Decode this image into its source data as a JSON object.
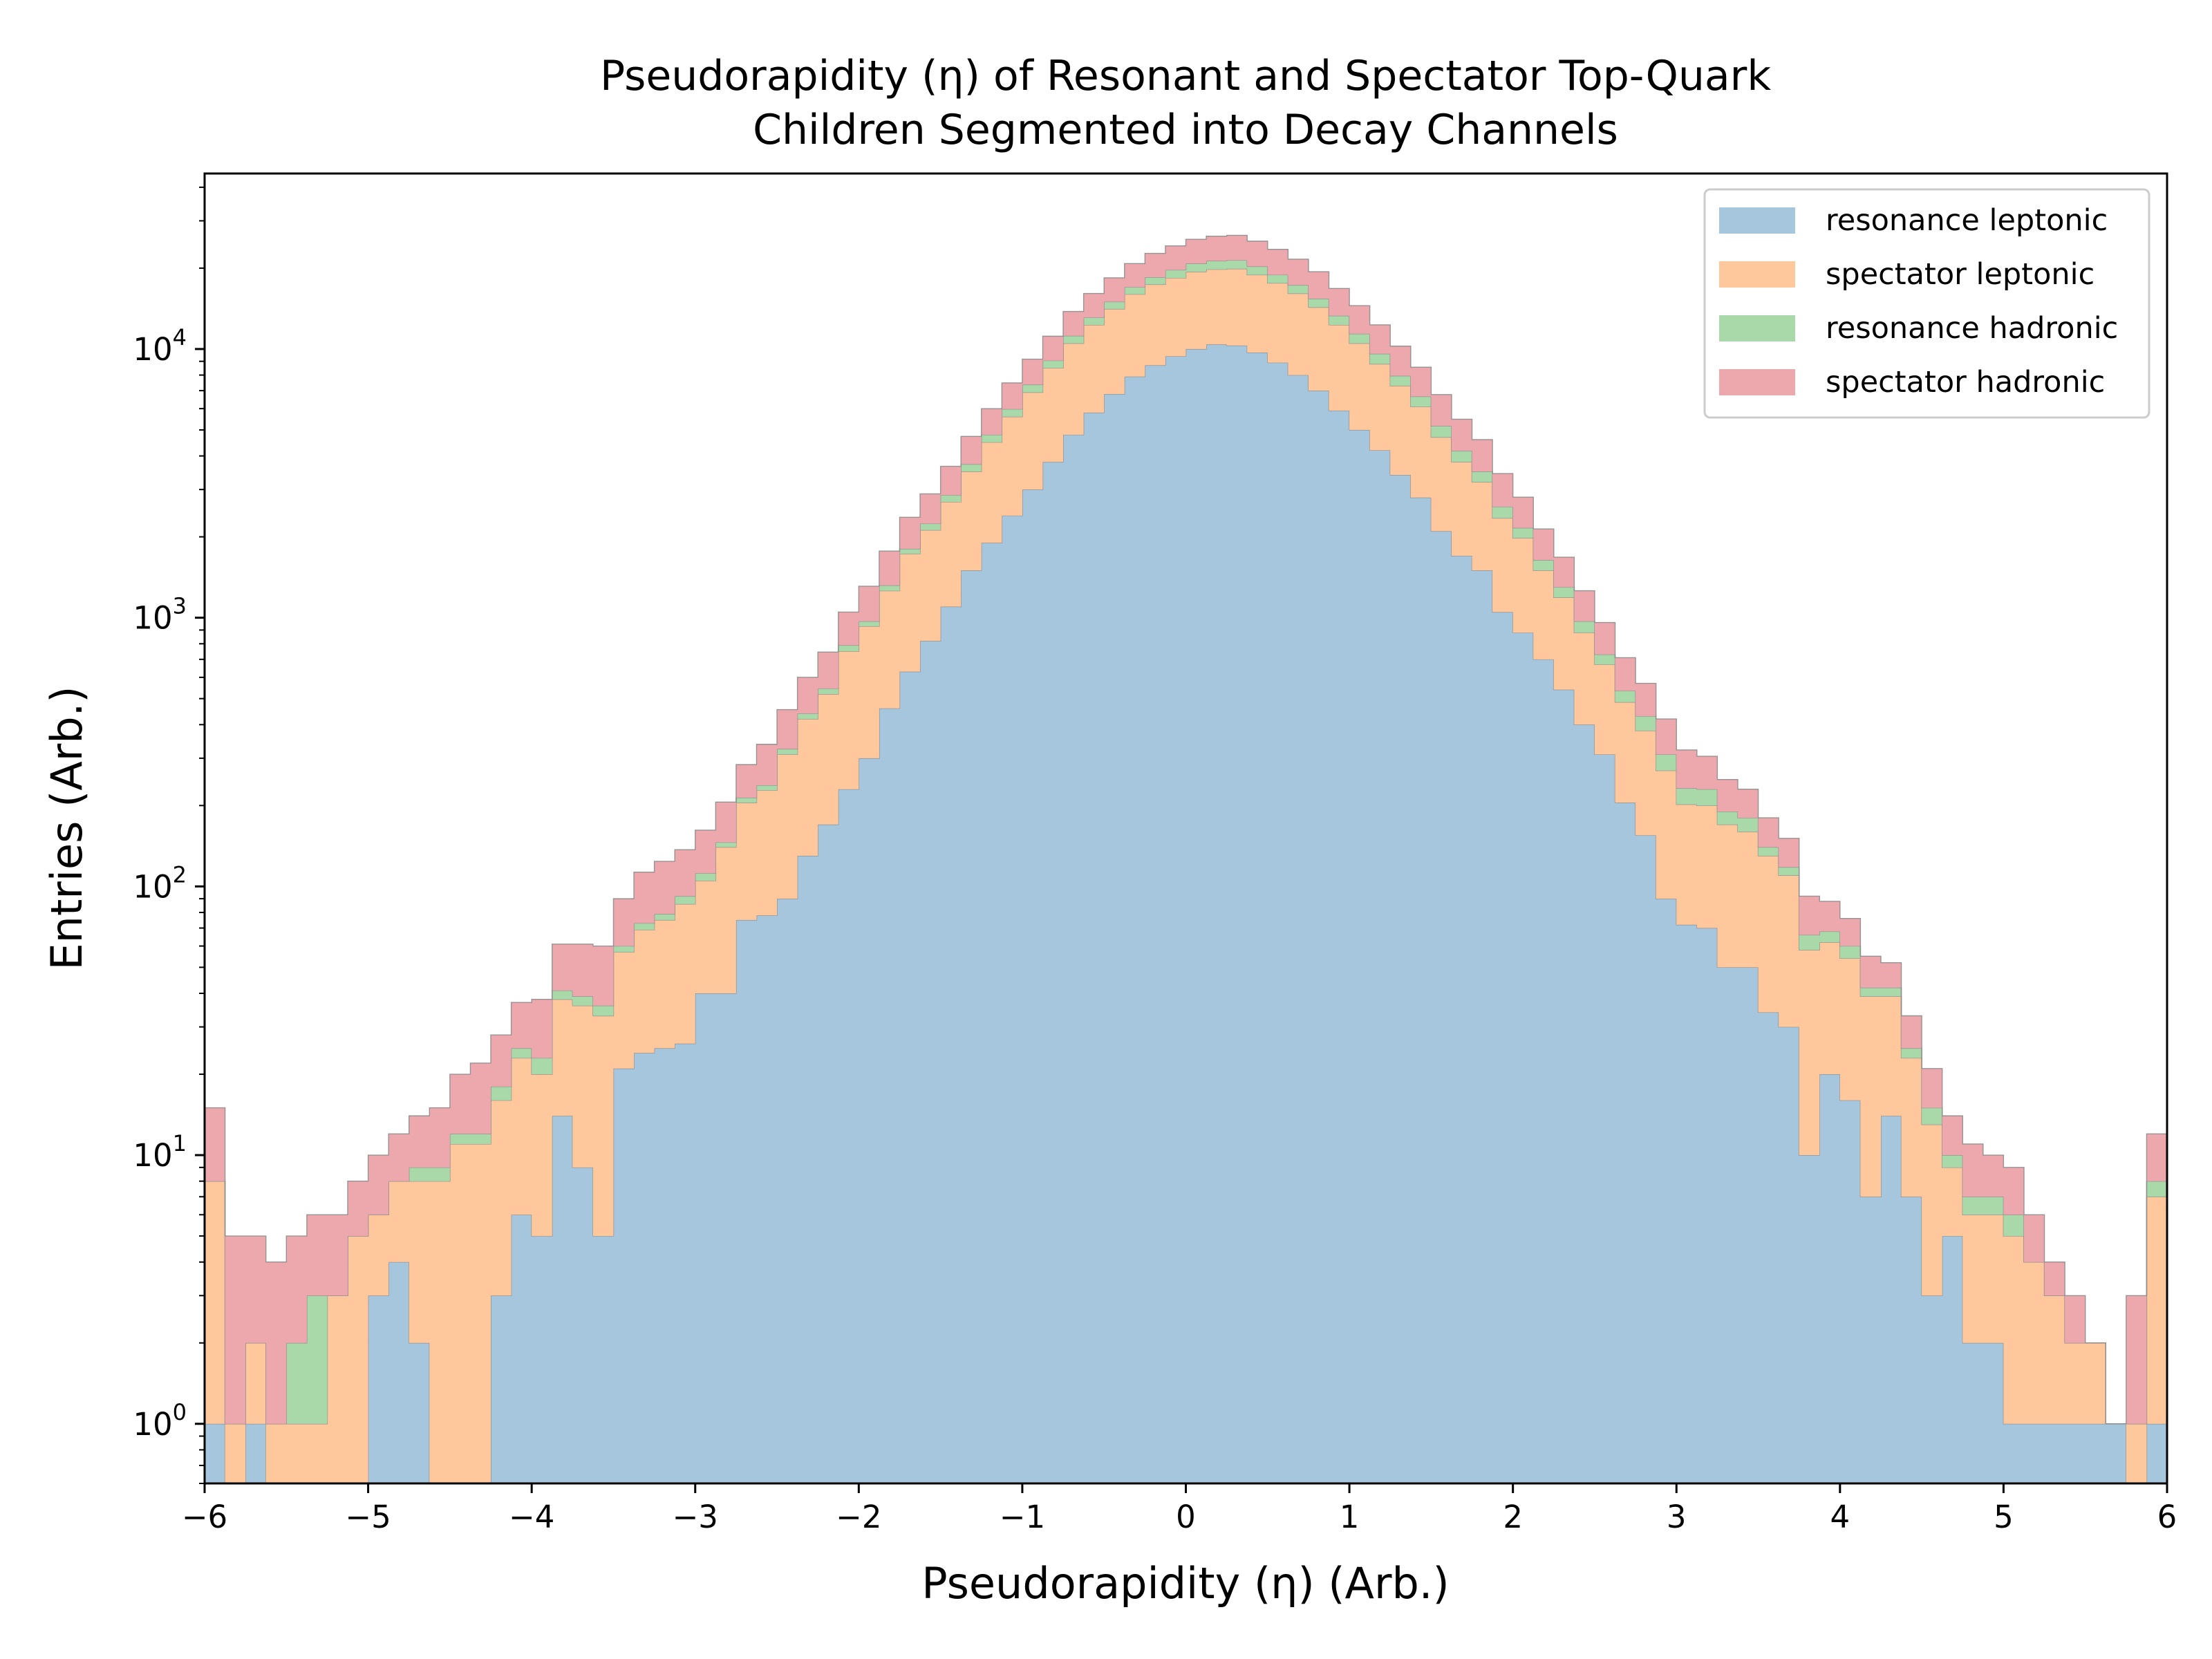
{
  "chart_data": {
    "type": "histogram",
    "stacked": true,
    "title_lines": [
      "Pseudorapidity (η) of Resonant and Spectator Top-Quark",
      "Children Segmented into Decay Channels"
    ],
    "xlabel": "Pseudorapidity (η) (Arb.)",
    "ylabel": "Entries (Arb.)",
    "xlim": [
      -6,
      6
    ],
    "ylim": [
      0.6,
      45000
    ],
    "yscale": "log",
    "x_ticks": [
      -6,
      -5,
      -4,
      -3,
      -2,
      -1,
      0,
      1,
      2,
      3,
      4,
      5,
      6
    ],
    "x_tick_labels": [
      "−6",
      "−5",
      "−4",
      "−3",
      "−2",
      "−1",
      "0",
      "1",
      "2",
      "3",
      "4",
      "5",
      "6"
    ],
    "y_ticks": [
      {
        "base": "10",
        "exp": "0",
        "value": 1
      },
      {
        "base": "10",
        "exp": "1",
        "value": 10
      },
      {
        "base": "10",
        "exp": "2",
        "value": 100
      },
      {
        "base": "10",
        "exp": "3",
        "value": 1000
      },
      {
        "base": "10",
        "exp": "4",
        "value": 10000
      }
    ],
    "bins": 96,
    "legend_position": "upper right",
    "series": [
      {
        "name": "resonance leptonic",
        "color": "#a6c6de",
        "values": [
          1,
          0,
          1,
          0,
          0,
          0,
          0,
          0,
          3,
          4,
          2,
          0,
          0,
          0,
          3,
          6,
          5,
          14,
          9,
          5,
          21,
          24,
          25,
          26,
          40,
          40,
          75,
          78,
          90,
          130,
          170,
          230,
          300,
          460,
          630,
          820,
          1100,
          1500,
          1900,
          2400,
          3000,
          3800,
          4800,
          5800,
          6800,
          7900,
          8700,
          9400,
          10000,
          10400,
          10300,
          9700,
          8900,
          8000,
          7000,
          5900,
          5000,
          4200,
          3400,
          2800,
          2100,
          1700,
          1500,
          1050,
          880,
          700,
          540,
          400,
          310,
          205,
          155,
          90,
          72,
          70,
          50,
          50,
          34,
          30,
          10,
          20,
          16,
          7,
          14,
          7,
          3,
          5,
          2,
          2,
          1,
          1,
          1,
          1,
          1,
          1,
          0,
          1
        ]
      },
      {
        "name": "spectator leptonic",
        "color": "#fec89c",
        "values": [
          7,
          1,
          1,
          1,
          1,
          1,
          3,
          5,
          3,
          4,
          6,
          8,
          11,
          11,
          13,
          17,
          15,
          24,
          27,
          28,
          36,
          45,
          50,
          60,
          65,
          100,
          130,
          150,
          220,
          290,
          350,
          520,
          630,
          800,
          1100,
          1300,
          1600,
          2000,
          2600,
          3200,
          3900,
          4700,
          5700,
          6500,
          7300,
          8100,
          8700,
          9000,
          9400,
          9400,
          9600,
          9200,
          8700,
          8100,
          7300,
          6400,
          5500,
          4600,
          3900,
          3300,
          2600,
          2100,
          1700,
          1300,
          1100,
          800,
          650,
          480,
          360,
          280,
          225,
          180,
          130,
          130,
          120,
          110,
          96,
          80,
          48,
          42,
          38,
          32,
          25,
          16,
          10,
          4,
          4,
          4,
          4,
          3,
          2,
          1,
          1,
          0,
          1,
          6
        ]
      },
      {
        "name": "resonance hadronic",
        "color": "#a9d9a9",
        "values": [
          0,
          0,
          0,
          0,
          1,
          2,
          0,
          0,
          0,
          0,
          1,
          1,
          1,
          1,
          2,
          2,
          3,
          3,
          3,
          3,
          3,
          4,
          4,
          6,
          7,
          6,
          9,
          10,
          15,
          20,
          25,
          40,
          40,
          60,
          75,
          120,
          160,
          230,
          300,
          380,
          470,
          560,
          700,
          800,
          900,
          1000,
          1100,
          1300,
          1400,
          1500,
          1500,
          1400,
          1300,
          1200,
          1100,
          1000,
          900,
          800,
          650,
          560,
          470,
          380,
          300,
          240,
          180,
          140,
          110,
          90,
          60,
          50,
          50,
          40,
          30,
          30,
          20,
          20,
          10,
          8,
          8,
          6,
          6,
          3,
          3,
          2,
          2,
          1,
          1,
          1,
          1,
          0,
          0,
          0,
          0,
          0,
          0,
          1
        ]
      },
      {
        "name": "spectator hadronic",
        "color": "#eda8ae",
        "values": [
          7,
          4,
          3,
          3,
          3,
          3,
          3,
          3,
          4,
          4,
          5,
          6,
          8,
          10,
          10,
          12,
          15,
          20,
          22,
          24,
          30,
          40,
          45,
          45,
          50,
          60,
          70,
          100,
          130,
          160,
          200,
          260,
          340,
          450,
          560,
          650,
          800,
          1000,
          1200,
          1500,
          1800,
          2100,
          2600,
          3000,
          3400,
          3800,
          4200,
          4500,
          4800,
          5000,
          5100,
          4900,
          4600,
          4300,
          4000,
          3500,
          3100,
          2700,
          2300,
          1900,
          1600,
          1300,
          1100,
          850,
          650,
          500,
          380,
          290,
          230,
          175,
          140,
          110,
          90,
          75,
          60,
          50,
          40,
          33,
          26,
          20,
          16,
          13,
          10,
          8,
          6,
          4,
          4,
          3,
          3,
          2,
          1,
          1,
          0,
          0,
          2,
          4
        ]
      }
    ]
  }
}
